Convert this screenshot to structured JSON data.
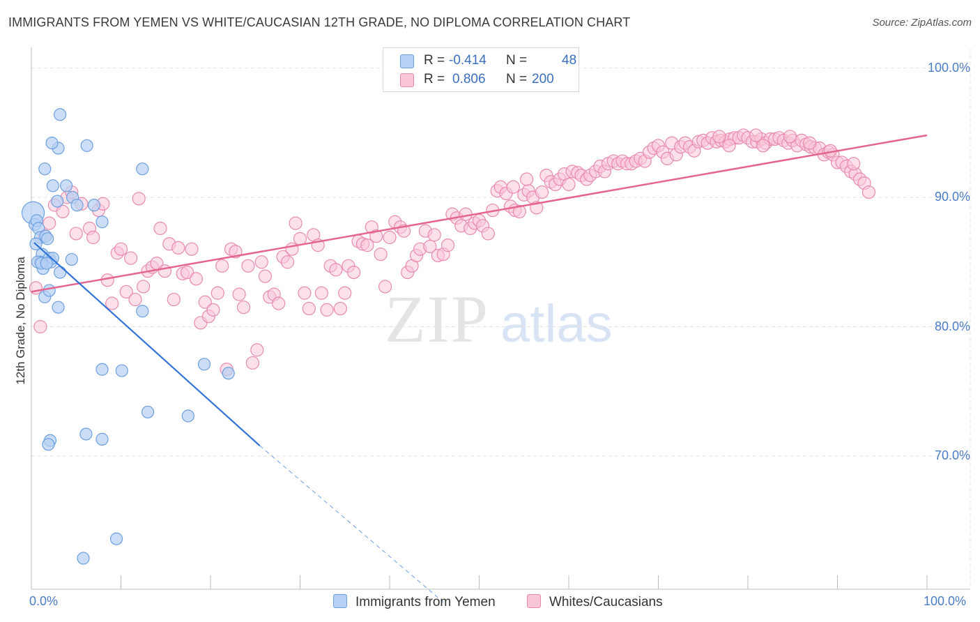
{
  "header": {
    "title": "IMMIGRANTS FROM YEMEN VS WHITE/CAUCASIAN 12TH GRADE, NO DIPLOMA CORRELATION CHART",
    "source": "Source: ZipAtlas.com"
  },
  "watermark": {
    "zip": "ZIP",
    "atlas": "atlas"
  },
  "legend_top": {
    "rows": [
      {
        "r_label": "R =",
        "r_value": "-0.414",
        "n_label": "N =",
        "n_value": "48"
      },
      {
        "r_label": "R =",
        "r_value": "0.806",
        "n_label": "N = ",
        "n_value": "200"
      }
    ]
  },
  "legend_bottom": [
    {
      "label": "Immigrants from Yemen"
    },
    {
      "label": "Whites/Caucasians"
    }
  ],
  "colors": {
    "blue_fill": "#b7d0f4",
    "blue_stroke": "#6c9fe0",
    "blue_line": "#2f72d8",
    "pink_fill": "#f9c6d8",
    "pink_stroke": "#e98aad",
    "pink_line": "#e4668f",
    "tick_text": "#4a7cc7",
    "grid": "#e2e2e2"
  },
  "chart_data": {
    "type": "scatter",
    "title": "IMMIGRANTS FROM YEMEN VS WHITE/CAUCASIAN 12TH GRADE, NO DIPLOMA CORRELATION CHART",
    "xlabel": "",
    "ylabel": "12th Grade, No Diploma",
    "xlim": [
      0,
      100
    ],
    "ylim": [
      60,
      103
    ],
    "x_tick_labels": [
      "0.0%",
      "100.0%"
    ],
    "y_ticks": [
      70,
      80,
      90,
      100
    ],
    "y_tick_labels": [
      "70.0%",
      "80.0%",
      "90.0%",
      "100.0%"
    ],
    "grid": true,
    "legend_placement": "top-center",
    "series": [
      {
        "name": "Immigrants from Yemen",
        "R": -0.414,
        "N": 48,
        "points": [
          [
            0.2,
            88.8
          ],
          [
            0.4,
            87.9
          ],
          [
            0.6,
            88.2
          ],
          [
            0.8,
            87.6
          ],
          [
            1.0,
            86.9
          ],
          [
            1.2,
            85.6
          ],
          [
            1.0,
            85.0
          ],
          [
            1.3,
            84.5
          ],
          [
            1.6,
            87.0
          ],
          [
            1.8,
            86.8
          ],
          [
            2.0,
            85.3
          ],
          [
            2.2,
            85.0
          ],
          [
            2.4,
            85.3
          ],
          [
            1.5,
            82.3
          ],
          [
            2.0,
            82.8
          ],
          [
            3.0,
            81.5
          ],
          [
            3.2,
            84.2
          ],
          [
            3.0,
            93.8
          ],
          [
            2.3,
            94.2
          ],
          [
            1.5,
            92.2
          ],
          [
            2.4,
            90.9
          ],
          [
            3.2,
            96.4
          ],
          [
            3.9,
            90.9
          ],
          [
            4.6,
            90.0
          ],
          [
            5.1,
            89.4
          ],
          [
            6.2,
            94.0
          ],
          [
            7.0,
            89.4
          ],
          [
            7.9,
            88.1
          ],
          [
            4.5,
            85.2
          ],
          [
            12.4,
            92.2
          ],
          [
            12.4,
            81.2
          ],
          [
            7.9,
            76.7
          ],
          [
            10.1,
            76.6
          ],
          [
            13.0,
            73.4
          ],
          [
            17.5,
            73.1
          ],
          [
            19.3,
            77.1
          ],
          [
            22.0,
            76.4
          ],
          [
            6.1,
            71.7
          ],
          [
            7.9,
            71.3
          ],
          [
            2.1,
            71.2
          ],
          [
            1.9,
            70.9
          ],
          [
            9.5,
            63.6
          ],
          [
            5.8,
            62.1
          ],
          [
            0.7,
            85.0
          ],
          [
            1.1,
            84.9
          ],
          [
            1.7,
            84.9
          ],
          [
            0.5,
            86.4
          ],
          [
            2.9,
            89.7
          ]
        ],
        "trend": {
          "x0": 0.3,
          "y0": 86.5,
          "x1": 25.5,
          "y1": 70.8,
          "dashed_to_x": 46,
          "dashed_to_y": 58.7
        }
      },
      {
        "name": "Whites/Caucasians",
        "R": 0.806,
        "N": 200,
        "points": [
          [
            0.5,
            83.0
          ],
          [
            1.0,
            80.0
          ],
          [
            1.5,
            87.0
          ],
          [
            2.0,
            88.0
          ],
          [
            2.6,
            89.4
          ],
          [
            3.5,
            88.9
          ],
          [
            4.0,
            90.0
          ],
          [
            4.5,
            90.4
          ],
          [
            5.0,
            87.2
          ],
          [
            5.6,
            89.5
          ],
          [
            6.5,
            87.6
          ],
          [
            6.9,
            86.9
          ],
          [
            7.5,
            89.0
          ],
          [
            8.0,
            89.5
          ],
          [
            8.5,
            83.6
          ],
          [
            9.0,
            81.8
          ],
          [
            9.6,
            85.7
          ],
          [
            10.0,
            86.0
          ],
          [
            10.6,
            82.7
          ],
          [
            11.1,
            85.3
          ],
          [
            11.6,
            82.1
          ],
          [
            12.0,
            89.9
          ],
          [
            12.5,
            83.1
          ],
          [
            13.0,
            84.3
          ],
          [
            13.5,
            84.6
          ],
          [
            14.0,
            84.9
          ],
          [
            14.4,
            87.6
          ],
          [
            14.9,
            84.3
          ],
          [
            15.4,
            86.4
          ],
          [
            15.9,
            82.1
          ],
          [
            16.4,
            86.1
          ],
          [
            16.9,
            84.1
          ],
          [
            17.4,
            84.2
          ],
          [
            17.9,
            86.0
          ],
          [
            18.4,
            83.7
          ],
          [
            18.9,
            80.3
          ],
          [
            19.4,
            81.9
          ],
          [
            19.8,
            80.8
          ],
          [
            20.3,
            81.3
          ],
          [
            20.8,
            82.6
          ],
          [
            21.3,
            84.7
          ],
          [
            21.8,
            76.7
          ],
          [
            22.3,
            86.0
          ],
          [
            22.8,
            85.8
          ],
          [
            23.2,
            82.5
          ],
          [
            23.7,
            81.5
          ],
          [
            24.2,
            84.7
          ],
          [
            24.7,
            77.2
          ],
          [
            25.2,
            78.2
          ],
          [
            25.7,
            85.0
          ],
          [
            26.1,
            83.9
          ],
          [
            26.6,
            82.3
          ],
          [
            27.1,
            82.5
          ],
          [
            27.6,
            81.8
          ],
          [
            28.1,
            85.4
          ],
          [
            28.6,
            85.0
          ],
          [
            29.1,
            86.0
          ],
          [
            29.5,
            88.0
          ],
          [
            30.0,
            86.8
          ],
          [
            30.5,
            82.6
          ],
          [
            31.0,
            81.4
          ],
          [
            31.5,
            87.1
          ],
          [
            32.0,
            86.3
          ],
          [
            32.4,
            82.6
          ],
          [
            33.0,
            81.3
          ],
          [
            33.4,
            84.7
          ],
          [
            34.0,
            84.4
          ],
          [
            34.5,
            81.4
          ],
          [
            35.0,
            82.6
          ],
          [
            35.4,
            84.7
          ],
          [
            36.0,
            84.2
          ],
          [
            36.5,
            86.6
          ],
          [
            37.0,
            86.4
          ],
          [
            37.5,
            86.3
          ],
          [
            38.0,
            87.7
          ],
          [
            38.5,
            87.0
          ],
          [
            39.0,
            85.6
          ],
          [
            39.5,
            83.1
          ],
          [
            40.0,
            86.9
          ],
          [
            40.6,
            88.1
          ],
          [
            41.2,
            87.7
          ],
          [
            41.6,
            87.4
          ],
          [
            42.0,
            84.2
          ],
          [
            42.5,
            84.7
          ],
          [
            43.0,
            85.5
          ],
          [
            43.4,
            86.0
          ],
          [
            44.0,
            87.4
          ],
          [
            44.5,
            86.2
          ],
          [
            45.0,
            87.1
          ],
          [
            45.4,
            85.5
          ],
          [
            46.0,
            85.6
          ],
          [
            46.5,
            86.3
          ],
          [
            47.0,
            88.7
          ],
          [
            47.5,
            88.4
          ],
          [
            48.0,
            87.8
          ],
          [
            48.5,
            88.7
          ],
          [
            49.0,
            87.6
          ],
          [
            49.5,
            88.0
          ],
          [
            50.0,
            88.2
          ],
          [
            50.4,
            87.8
          ],
          [
            51.0,
            87.2
          ],
          [
            51.5,
            89.0
          ],
          [
            52.0,
            90.5
          ],
          [
            52.4,
            90.8
          ],
          [
            53.0,
            90.3
          ],
          [
            53.5,
            89.3
          ],
          [
            54.0,
            89.0
          ],
          [
            54.5,
            88.9
          ],
          [
            55.0,
            90.2
          ],
          [
            55.5,
            90.5
          ],
          [
            56.0,
            90.0
          ],
          [
            56.4,
            89.2
          ],
          [
            57.0,
            90.4
          ],
          [
            57.5,
            91.7
          ],
          [
            58.0,
            91.2
          ],
          [
            58.5,
            91.0
          ],
          [
            59.0,
            91.4
          ],
          [
            59.5,
            91.8
          ],
          [
            60.0,
            91.0
          ],
          [
            60.4,
            92.0
          ],
          [
            61.0,
            91.9
          ],
          [
            61.4,
            91.7
          ],
          [
            62.0,
            91.4
          ],
          [
            62.4,
            91.7
          ],
          [
            63.0,
            92.0
          ],
          [
            63.5,
            92.4
          ],
          [
            64.0,
            92.0
          ],
          [
            64.4,
            92.6
          ],
          [
            65.0,
            92.8
          ],
          [
            65.5,
            92.6
          ],
          [
            66.0,
            92.8
          ],
          [
            66.5,
            92.6
          ],
          [
            67.0,
            92.6
          ],
          [
            67.5,
            92.8
          ],
          [
            68.0,
            93.0
          ],
          [
            68.5,
            92.8
          ],
          [
            69.0,
            93.5
          ],
          [
            69.5,
            93.8
          ],
          [
            70.0,
            94.0
          ],
          [
            70.5,
            93.5
          ],
          [
            71.0,
            93.0
          ],
          [
            71.5,
            94.2
          ],
          [
            72.0,
            93.3
          ],
          [
            72.5,
            93.9
          ],
          [
            73.0,
            94.2
          ],
          [
            73.5,
            93.9
          ],
          [
            74.0,
            93.6
          ],
          [
            74.5,
            94.3
          ],
          [
            75.0,
            94.4
          ],
          [
            75.5,
            94.2
          ],
          [
            76.0,
            94.6
          ],
          [
            76.5,
            94.3
          ],
          [
            77.0,
            94.4
          ],
          [
            77.5,
            94.3
          ],
          [
            78.0,
            94.5
          ],
          [
            78.5,
            94.6
          ],
          [
            79.0,
            94.6
          ],
          [
            79.5,
            94.8
          ],
          [
            80.0,
            94.6
          ],
          [
            80.5,
            94.3
          ],
          [
            81.0,
            94.3
          ],
          [
            81.5,
            94.5
          ],
          [
            82.0,
            94.2
          ],
          [
            82.5,
            94.5
          ],
          [
            83.0,
            94.5
          ],
          [
            83.5,
            94.6
          ],
          [
            84.0,
            94.4
          ],
          [
            84.5,
            94.2
          ],
          [
            85.0,
            94.4
          ],
          [
            85.5,
            94.0
          ],
          [
            86.0,
            94.4
          ],
          [
            86.5,
            94.1
          ],
          [
            87.0,
            93.9
          ],
          [
            87.5,
            93.8
          ],
          [
            88.0,
            93.8
          ],
          [
            88.5,
            93.3
          ],
          [
            89.0,
            93.5
          ],
          [
            89.5,
            93.3
          ],
          [
            90.0,
            92.7
          ],
          [
            90.5,
            92.7
          ],
          [
            91.0,
            92.4
          ],
          [
            91.5,
            92.0
          ],
          [
            92.0,
            91.8
          ],
          [
            92.5,
            91.4
          ],
          [
            93.0,
            91.1
          ],
          [
            93.5,
            90.4
          ],
          [
            53.8,
            90.8
          ],
          [
            55.3,
            91.4
          ],
          [
            76.8,
            94.7
          ],
          [
            77.9,
            94.0
          ],
          [
            80.9,
            94.8
          ],
          [
            81.7,
            94.0
          ],
          [
            84.7,
            94.7
          ],
          [
            86.9,
            94.2
          ],
          [
            89.2,
            93.6
          ],
          [
            91.8,
            92.6
          ]
        ],
        "trend": {
          "x0": 0.0,
          "y0": 82.7,
          "x1": 100.0,
          "y1": 94.8
        }
      }
    ]
  }
}
